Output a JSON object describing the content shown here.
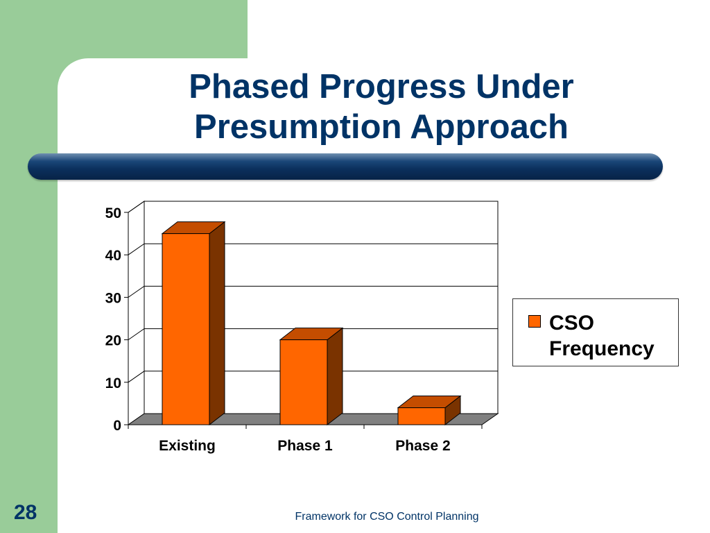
{
  "slide": {
    "title_line1": "Phased Progress Under",
    "title_line2": "Presumption Approach",
    "number": "28",
    "footer": "Framework for CSO Control Planning"
  },
  "colors": {
    "title": "#003366",
    "bar_front": "#ff6600",
    "bar_side": "#7a3300",
    "bar_top": "#c44d00",
    "floor": "#808080",
    "green_panel": "#99cc99"
  },
  "chart_data": {
    "type": "bar",
    "style": "3d",
    "categories": [
      "Existing",
      "Phase 1",
      "Phase 2"
    ],
    "series": [
      {
        "name": "CSO Frequency",
        "values": [
          45,
          20,
          4
        ]
      }
    ],
    "yticks": [
      "0",
      "10",
      "20",
      "30",
      "40",
      "50"
    ],
    "ylim": [
      0,
      50
    ],
    "grid": true,
    "legend": {
      "position": "right",
      "label": "CSO Frequency"
    }
  }
}
